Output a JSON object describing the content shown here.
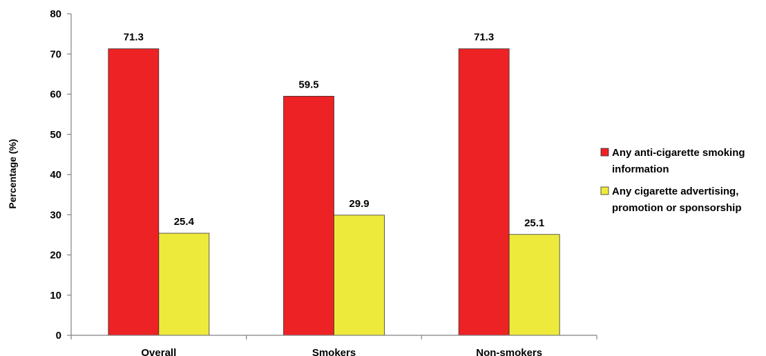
{
  "chart_data": {
    "type": "bar",
    "categories": [
      "Overall",
      "Smokers",
      "Non-smokers"
    ],
    "series": [
      {
        "name": "Any anti-cigarette smoking information",
        "legend_lines": [
          "Any anti-cigarette smoking",
          "information"
        ],
        "color": "#ed2224",
        "values": [
          71.3,
          59.5,
          71.3
        ],
        "value_labels": [
          "71.3",
          "59.5",
          "71.3"
        ]
      },
      {
        "name": "Any cigarette advertising, promotion or sponsorship",
        "legend_lines": [
          "Any cigarette advertising,",
          "promotion or sponsorship"
        ],
        "color": "#eeea3c",
        "values": [
          25.4,
          29.9,
          25.1
        ],
        "value_labels": [
          "25.4",
          "29.9",
          "25.1"
        ]
      }
    ],
    "title": "",
    "xlabel": "",
    "ylabel": "Percentage (%)",
    "ylim": [
      0,
      80
    ],
    "yticks": [
      0,
      10,
      20,
      30,
      40,
      50,
      60,
      70,
      80
    ],
    "grid": false,
    "legend_position": "right"
  }
}
